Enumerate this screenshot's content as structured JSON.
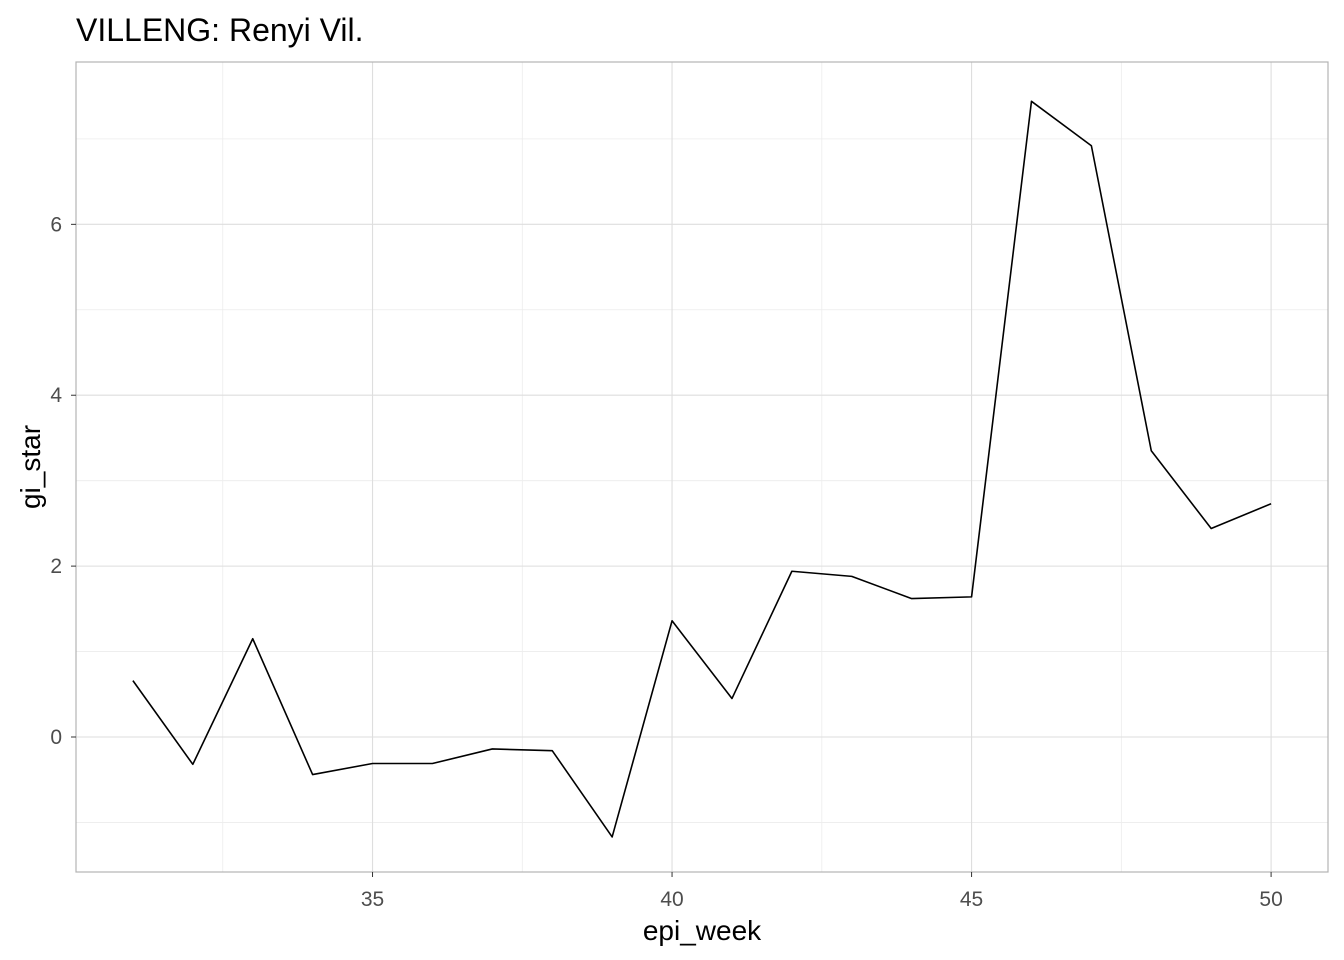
{
  "chart_data": {
    "type": "line",
    "title": "VILLENG: Renyi Vil.",
    "xlabel": "epi_week",
    "ylabel": "gi_star",
    "xlim": [
      30.05,
      50.95
    ],
    "ylim": [
      -1.58,
      7.9
    ],
    "x_ticks": [
      35,
      40,
      45,
      50
    ],
    "y_ticks": [
      0,
      2,
      4,
      6
    ],
    "x_minor_ticks": [
      32.5,
      37.5,
      42.5,
      47.5
    ],
    "y_minor_ticks": [
      -1,
      1,
      3,
      5,
      7
    ],
    "grid": true,
    "line_color": "#000000",
    "series": [
      {
        "x": [
          31,
          32,
          33,
          34,
          35,
          36,
          37,
          38,
          39,
          40,
          41,
          42,
          43,
          44,
          45,
          46,
          47,
          48,
          49,
          50
        ],
        "values": [
          0.66,
          -0.32,
          1.15,
          -0.44,
          -0.31,
          -0.31,
          -0.14,
          -0.16,
          -1.17,
          1.36,
          0.45,
          1.94,
          1.88,
          1.62,
          1.64,
          7.44,
          6.92,
          3.35,
          2.44,
          2.73
        ]
      }
    ]
  }
}
